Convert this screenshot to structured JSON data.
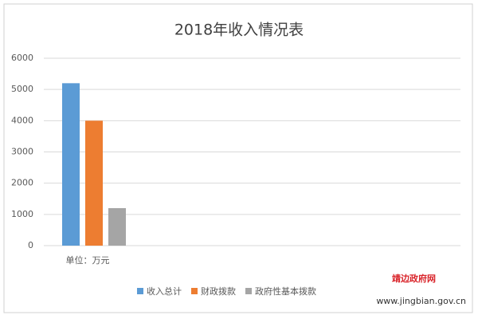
{
  "chart_data": {
    "type": "bar",
    "title": "2018年收入情况表",
    "categories": [
      "单位：万元"
    ],
    "series": [
      {
        "name": "收入总计",
        "color": "#5b9bd5",
        "values": [
          5200
        ]
      },
      {
        "name": "财政拨款",
        "color": "#ed7d31",
        "values": [
          4000
        ]
      },
      {
        "name": "政府性基本拨款",
        "color": "#a5a5a5",
        "values": [
          1200
        ]
      }
    ],
    "ylim": [
      0,
      6000
    ],
    "yticks": [
      0,
      1000,
      2000,
      3000,
      4000,
      5000,
      6000
    ],
    "grid": true,
    "legend": "bottom"
  },
  "watermark": {
    "name": "靖边政府网",
    "url": "www.jingbian.gov.cn"
  }
}
